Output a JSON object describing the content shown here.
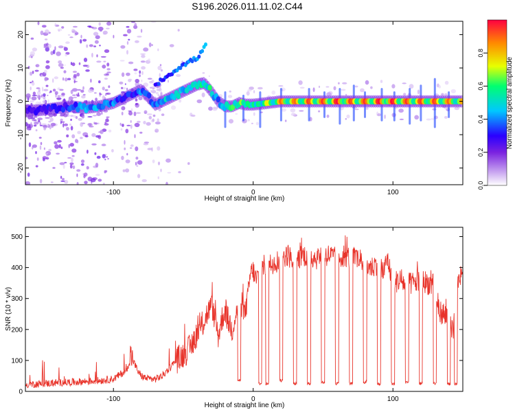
{
  "title": "S196.2026.011.11.02.C44",
  "colors": {
    "snr_line": "#e8332a",
    "axis": "#000000",
    "colormap": [
      "#ffffff",
      "#c9a6f0",
      "#7a22e0",
      "#2a00ff",
      "#00c8ff",
      "#00ff70",
      "#e8ff00",
      "#ff8a00",
      "#ff0040"
    ]
  },
  "chart_data": [
    {
      "type": "heatmap",
      "name": "spectrogram",
      "xlabel": "Height of straight line (km)",
      "ylabel": "Frequency (Hz)",
      "xlim": [
        -163,
        150
      ],
      "ylim": [
        -25,
        24
      ],
      "xticks": [
        -100,
        0,
        100
      ],
      "yticks": [
        -20,
        -10,
        0,
        10,
        20
      ],
      "xtick_labels": [
        "-100",
        "0",
        "100"
      ],
      "ytick_labels": [
        "-20",
        "-10",
        "0",
        "10",
        "20"
      ],
      "colorbar": {
        "label": "Normalized spectral amplitude",
        "range": [
          0,
          1
        ],
        "ticks": [
          0.0,
          0.2,
          0.4,
          0.6,
          0.8
        ],
        "tick_labels": [
          "0.0",
          "0.2",
          "0.4",
          "0.6",
          "0.8"
        ]
      },
      "ridge": {
        "x": [
          -163,
          -150,
          -140,
          -130,
          -120,
          -110,
          -100,
          -90,
          -80,
          -70,
          -60,
          -50,
          -40,
          -35,
          -30,
          -25,
          -20,
          -15,
          -10,
          -5,
          0,
          10,
          20,
          30,
          40,
          50,
          60,
          70,
          80,
          90,
          100,
          110,
          120,
          130,
          140,
          150
        ],
        "freq": [
          -3,
          -2.5,
          -2,
          -1.5,
          -2,
          -1.5,
          -0.5,
          1.5,
          3.5,
          -1,
          1,
          3,
          5,
          5.5,
          3,
          0,
          -1.5,
          -1.5,
          -0.5,
          -1,
          -1,
          -0.5,
          0,
          0,
          0,
          0,
          0,
          0,
          0,
          0,
          0,
          0,
          0,
          0,
          0,
          0
        ],
        "amplitude": [
          0.25,
          0.3,
          0.3,
          0.35,
          0.45,
          0.45,
          0.4,
          0.35,
          0.4,
          0.4,
          0.5,
          0.5,
          0.55,
          0.6,
          0.55,
          0.4,
          0.45,
          0.6,
          0.7,
          0.6,
          0.55,
          0.75,
          0.9,
          0.9,
          0.95,
          0.95,
          1.0,
          0.95,
          0.95,
          1.0,
          1.0,
          0.95,
          0.95,
          0.95,
          0.9,
          0.85
        ]
      },
      "branch": {
        "x": [
          -70,
          -60,
          -50,
          -40,
          -35,
          -33
        ],
        "freq": [
          5,
          8,
          11,
          13,
          16,
          19
        ],
        "amplitude": [
          0.35,
          0.4,
          0.45,
          0.45,
          0.5,
          0.55
        ]
      },
      "vertical_spikes": {
        "x": [
          -20,
          -7,
          5,
          20,
          40,
          51,
          62,
          72,
          80,
          92,
          101,
          112,
          120,
          130,
          140
        ],
        "freq_range": [
          [
            -8,
            3
          ],
          [
            -6,
            2
          ],
          [
            -8,
            3
          ],
          [
            -6,
            4
          ],
          [
            -6,
            4
          ],
          [
            -5,
            3
          ],
          [
            -7,
            4
          ],
          [
            -6,
            5
          ],
          [
            -5,
            3
          ],
          [
            -6,
            4
          ],
          [
            -6,
            3
          ],
          [
            -7,
            4
          ],
          [
            -6,
            5
          ],
          [
            -8,
            7
          ],
          [
            -5,
            3
          ]
        ],
        "amplitude": 0.35
      }
    },
    {
      "type": "line",
      "name": "snr",
      "xlabel": "Height of straight line (km)",
      "ylabel": "SNR (10 * v/v)",
      "xlim": [
        -163,
        150
      ],
      "ylim": [
        0,
        530
      ],
      "xticks": [
        -100,
        0,
        100
      ],
      "yticks": [
        0,
        100,
        200,
        300,
        400,
        500
      ],
      "xtick_labels": [
        "-100",
        "0",
        "100"
      ],
      "ytick_labels": [
        "0",
        "100",
        "200",
        "300",
        "400",
        "500"
      ],
      "series": [
        {
          "name": "SNR",
          "x": [
            -163,
            -150,
            -140,
            -130,
            -120,
            -110,
            -100,
            -95,
            -90,
            -88,
            -85,
            -82,
            -80,
            -78,
            -75,
            -70,
            -65,
            -60,
            -55,
            -50,
            -45,
            -40,
            -38,
            -35,
            -32,
            -30,
            -27,
            -25,
            -22,
            -20,
            -18,
            -15,
            -12,
            -10,
            -8,
            -6,
            -4,
            -2,
            0,
            2,
            5,
            7,
            9,
            12,
            15,
            17,
            19,
            22,
            25,
            30,
            35,
            40,
            45,
            50,
            55,
            58,
            60,
            65,
            70,
            73,
            75,
            80,
            85,
            90,
            93,
            96,
            100,
            105,
            108,
            110,
            115,
            120,
            125,
            130,
            133,
            136,
            140,
            143,
            145,
            147,
            150
          ],
          "y": [
            22,
            25,
            28,
            30,
            32,
            35,
            40,
            55,
            70,
            120,
            90,
            60,
            50,
            45,
            40,
            40,
            50,
            75,
            100,
            120,
            140,
            190,
            200,
            230,
            260,
            280,
            230,
            180,
            240,
            260,
            230,
            200,
            260,
            240,
            280,
            250,
            300,
            380,
            390,
            360,
            380,
            400,
            410,
            410,
            420,
            420,
            430,
            440,
            440,
            420,
            440,
            440,
            430,
            440,
            440,
            430,
            430,
            440,
            430,
            430,
            430,
            410,
            400,
            420,
            380,
            430,
            350,
            360,
            350,
            345,
            350,
            360,
            350,
            340,
            260,
            250,
            230,
            180,
            260,
            370,
            390
          ],
          "dips": [
            -10,
            5,
            10,
            20,
            30,
            40,
            50,
            60,
            70,
            80,
            90,
            100,
            110,
            120,
            130,
            140,
            145
          ],
          "dip_depth": [
            30,
            20,
            20,
            30,
            20,
            20,
            25,
            20,
            20,
            25,
            20,
            20,
            25,
            20,
            20,
            20,
            20
          ]
        }
      ]
    }
  ]
}
